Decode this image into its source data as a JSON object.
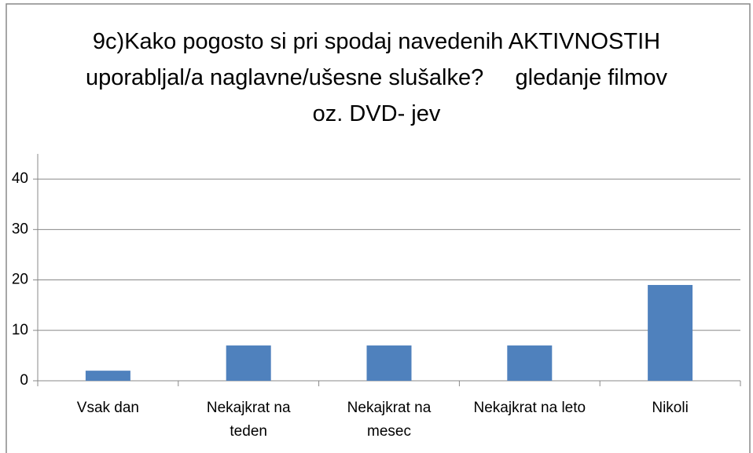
{
  "chart_data": {
    "type": "bar",
    "title": "9c)Kako pogosto si pri spodaj navedenih AKTIVNOSTIH uporabljal/a naglavne/ušesne slušalke?     gledanje filmov oz. DVD- jev",
    "categories": [
      "Vsak dan",
      "Nekajkrat na teden",
      "Nekajkrat na mesec",
      "Nekajkrat na leto",
      "Nikoli"
    ],
    "values": [
      2,
      7,
      7,
      7,
      19
    ],
    "color": "#4f81bd",
    "ylim": [
      0,
      45
    ],
    "yticks": [
      0,
      10,
      20,
      30,
      40
    ],
    "grid": true
  }
}
